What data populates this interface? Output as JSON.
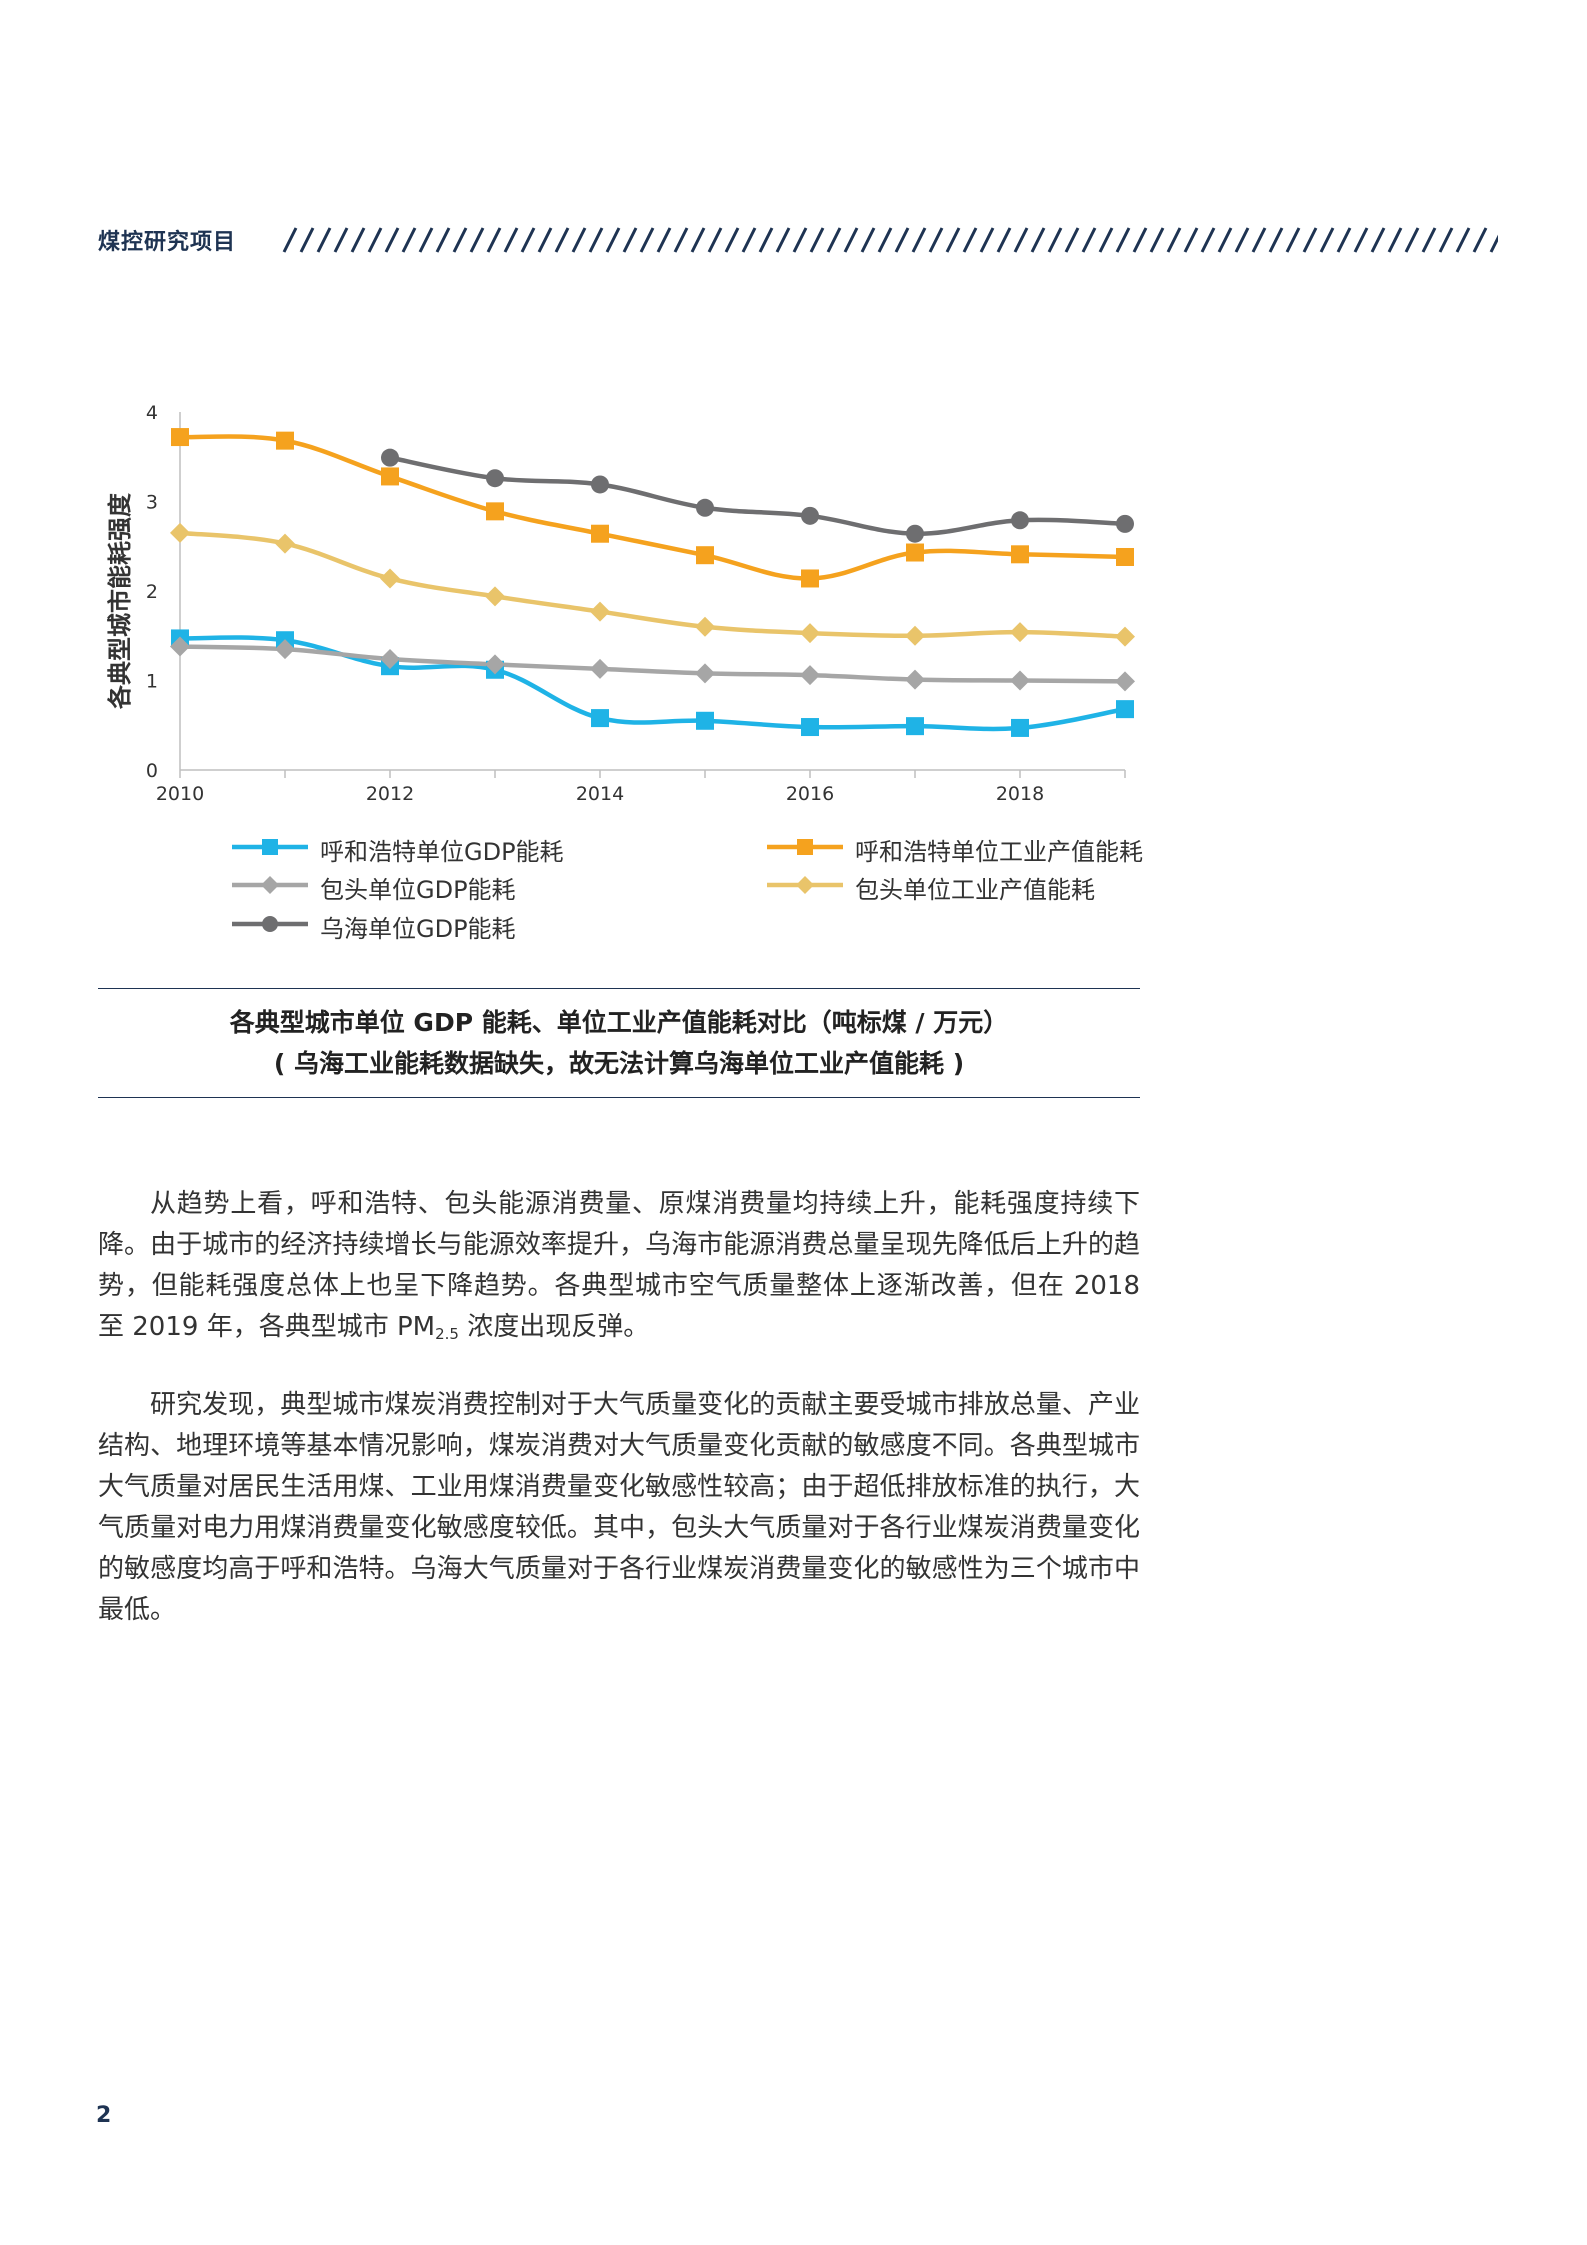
{
  "header": {
    "title": "煤控研究项目"
  },
  "chart_data": {
    "type": "line",
    "ylabel": "各典型城市能耗强度",
    "ylim": [
      0,
      4
    ],
    "yticks": [
      "0",
      "1",
      "2",
      "3",
      "4"
    ],
    "xlim": [
      2010,
      2019
    ],
    "xticks": [
      "2010",
      "2012",
      "2014",
      "2016",
      "2018"
    ],
    "x": [
      2010,
      2011,
      2012,
      2013,
      2014,
      2015,
      2016,
      2017,
      2018,
      2019
    ],
    "series": [
      {
        "name": "呼和浩特单位GDP能耗",
        "color": "#1fb3e6",
        "marker": "square",
        "values": [
          1.47,
          1.45,
          1.16,
          1.12,
          0.58,
          0.55,
          0.48,
          0.49,
          0.47,
          0.68
        ]
      },
      {
        "name": "呼和浩特单位工业产值能耗",
        "color": "#f5a21e",
        "marker": "square",
        "values": [
          3.72,
          3.68,
          3.28,
          2.89,
          2.64,
          2.4,
          2.14,
          2.43,
          2.41,
          2.38
        ]
      },
      {
        "name": "包头单位GDP能耗",
        "color": "#a6a6a6",
        "marker": "diamond",
        "values": [
          1.38,
          1.35,
          1.24,
          1.18,
          1.13,
          1.08,
          1.06,
          1.01,
          1.0,
          0.99
        ]
      },
      {
        "name": "包头单位工业产值能耗",
        "color": "#e9c46a",
        "marker": "diamond",
        "values": [
          2.65,
          2.53,
          2.14,
          1.94,
          1.77,
          1.6,
          1.53,
          1.5,
          1.54,
          1.49
        ]
      },
      {
        "name": "乌海单位GDP能耗",
        "color": "#6e6e70",
        "marker": "circle",
        "values": [
          null,
          null,
          3.49,
          3.26,
          3.19,
          2.93,
          2.84,
          2.64,
          2.79,
          2.75
        ]
      }
    ],
    "legend_position": "bottom"
  },
  "caption": {
    "line1": "各典型城市单位 GDP 能耗、单位工业产值能耗对比（吨标煤 / 万元）",
    "line2": "( 乌海工业能耗数据缺失，故无法计算乌海单位工业产值能耗 )"
  },
  "paragraph1": {
    "before_sub": "从趋势上看，呼和浩特、包头能源消费量、原煤消费量均持续上升，能耗强度持续下降。由于城市的经济持续增长与能源效率提升，乌海市能源消费总量呈现先降低后上升的趋势，但能耗强度总体上也呈下降趋势。各典型城市空气质量整体上逐渐改善，但在 2018 至 2019 年，各典型城市 PM",
    "sub": "2.5",
    "after_sub": " 浓度出现反弹。"
  },
  "paragraph2": "研究发现，典型城市煤炭消费控制对于大气质量变化的贡献主要受城市排放总量、产业结构、地理环境等基本情况影响，煤炭消费对大气质量变化贡献的敏感度不同。各典型城市大气质量对居民生活用煤、工业用煤消费量变化敏感性较高；由于超低排放标准的执行，大气质量对电力用煤消费量变化敏感度较低。其中，包头大气质量对于各行业煤炭消费量变化的敏感度均高于呼和浩特。乌海大气质量对于各行业煤炭消费量变化的敏感性为三个城市中最低。",
  "page_number": "2"
}
